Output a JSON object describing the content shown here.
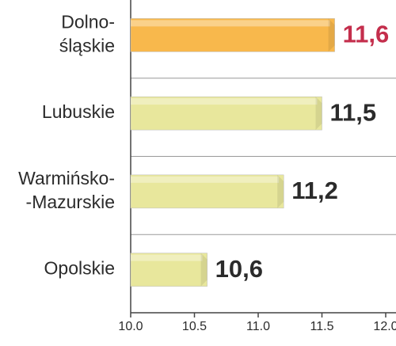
{
  "chart_data": {
    "type": "bar",
    "orientation": "horizontal",
    "categories": [
      [
        "Dolno-",
        "śląskie"
      ],
      [
        "Lubuskie"
      ],
      [
        "Warmińsko-",
        "-Mazurskie"
      ],
      [
        "Opolskie"
      ]
    ],
    "values": [
      11.6,
      11.5,
      11.2,
      10.6
    ],
    "value_labels": [
      "11,6",
      "11,5",
      "11,2",
      "10,6"
    ],
    "colors": [
      "#f8b84c",
      "#e8e79c",
      "#e8e79c",
      "#e8e79c"
    ],
    "value_label_colors": [
      "#c42e4c",
      "#2b2b2b",
      "#2b2b2b",
      "#2b2b2b"
    ],
    "xlim": [
      10.0,
      12.0
    ],
    "xticks": [
      {
        "value": 10.0,
        "label": "10.0"
      },
      {
        "value": 10.5,
        "label": "10.5"
      },
      {
        "value": 11.0,
        "label": "11.0"
      },
      {
        "value": 11.5,
        "label": "11.5"
      },
      {
        "value": 12.0,
        "label": "12.0"
      }
    ]
  }
}
